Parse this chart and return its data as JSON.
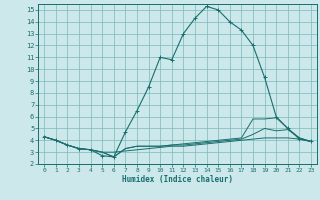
{
  "bg_color": "#cce8ea",
  "grid_color": "#7ab8bc",
  "line_color": "#1a6e6e",
  "xlabel": "Humidex (Indice chaleur)",
  "xlim": [
    -0.5,
    23.5
  ],
  "ylim": [
    2,
    15.5
  ],
  "xticks": [
    0,
    1,
    2,
    3,
    4,
    5,
    6,
    7,
    8,
    9,
    10,
    11,
    12,
    13,
    14,
    15,
    16,
    17,
    18,
    19,
    20,
    21,
    22,
    23
  ],
  "yticks": [
    2,
    3,
    4,
    5,
    6,
    7,
    8,
    9,
    10,
    11,
    12,
    13,
    14,
    15
  ],
  "series_main": [
    [
      0,
      4.3
    ],
    [
      1,
      4.0
    ],
    [
      2,
      3.6
    ],
    [
      3,
      3.3
    ],
    [
      4,
      3.2
    ],
    [
      5,
      2.7
    ],
    [
      6,
      2.6
    ],
    [
      7,
      4.7
    ],
    [
      8,
      6.5
    ],
    [
      9,
      8.5
    ],
    [
      10,
      11.0
    ],
    [
      11,
      10.8
    ],
    [
      12,
      13.0
    ],
    [
      13,
      14.3
    ],
    [
      14,
      15.3
    ],
    [
      15,
      15.0
    ],
    [
      16,
      14.0
    ],
    [
      17,
      13.3
    ],
    [
      18,
      12.0
    ],
    [
      19,
      9.3
    ],
    [
      20,
      6.0
    ],
    [
      21,
      5.0
    ],
    [
      22,
      4.1
    ],
    [
      23,
      3.9
    ]
  ],
  "series_flat1": [
    [
      0,
      4.3
    ],
    [
      1,
      4.0
    ],
    [
      2,
      3.6
    ],
    [
      3,
      3.3
    ],
    [
      4,
      3.2
    ],
    [
      5,
      3.0
    ],
    [
      6,
      3.0
    ],
    [
      7,
      3.1
    ],
    [
      8,
      3.2
    ],
    [
      9,
      3.3
    ],
    [
      10,
      3.4
    ],
    [
      11,
      3.5
    ],
    [
      12,
      3.5
    ],
    [
      13,
      3.6
    ],
    [
      14,
      3.7
    ],
    [
      15,
      3.8
    ],
    [
      16,
      3.9
    ],
    [
      17,
      4.0
    ],
    [
      18,
      4.1
    ],
    [
      19,
      4.2
    ],
    [
      20,
      4.2
    ],
    [
      21,
      4.2
    ],
    [
      22,
      4.1
    ],
    [
      23,
      3.9
    ]
  ],
  "series_flat2": [
    [
      0,
      4.3
    ],
    [
      1,
      4.0
    ],
    [
      2,
      3.6
    ],
    [
      3,
      3.3
    ],
    [
      4,
      3.2
    ],
    [
      5,
      3.0
    ],
    [
      6,
      2.6
    ],
    [
      7,
      3.3
    ],
    [
      8,
      3.5
    ],
    [
      9,
      3.5
    ],
    [
      10,
      3.5
    ],
    [
      11,
      3.6
    ],
    [
      12,
      3.6
    ],
    [
      13,
      3.7
    ],
    [
      14,
      3.8
    ],
    [
      15,
      3.9
    ],
    [
      16,
      4.0
    ],
    [
      17,
      4.1
    ],
    [
      18,
      4.5
    ],
    [
      19,
      5.0
    ],
    [
      20,
      4.8
    ],
    [
      21,
      4.9
    ],
    [
      22,
      4.2
    ],
    [
      23,
      3.9
    ]
  ],
  "series_flat3": [
    [
      0,
      4.3
    ],
    [
      1,
      4.0
    ],
    [
      2,
      3.6
    ],
    [
      3,
      3.3
    ],
    [
      4,
      3.2
    ],
    [
      5,
      3.0
    ],
    [
      6,
      2.6
    ],
    [
      7,
      3.3
    ],
    [
      8,
      3.5
    ],
    [
      9,
      3.5
    ],
    [
      10,
      3.5
    ],
    [
      11,
      3.6
    ],
    [
      12,
      3.7
    ],
    [
      13,
      3.8
    ],
    [
      14,
      3.9
    ],
    [
      15,
      4.0
    ],
    [
      16,
      4.1
    ],
    [
      17,
      4.2
    ],
    [
      18,
      5.8
    ],
    [
      19,
      5.8
    ],
    [
      20,
      5.9
    ],
    [
      21,
      5.0
    ],
    [
      22,
      4.2
    ],
    [
      23,
      3.9
    ]
  ]
}
